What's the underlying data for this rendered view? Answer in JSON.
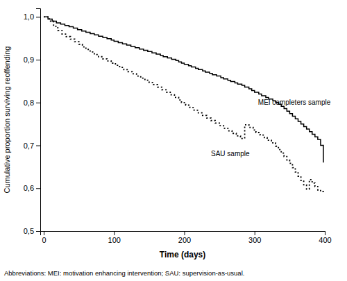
{
  "chart_data": {
    "type": "line",
    "xlabel": "Time (days)",
    "ylabel": "Cumulative proportion surviving reoffending",
    "footnote": "Abbreviations: MEI: motivation enhancing intervention; SAU: supervision-as-usual.",
    "xlim": [
      -5,
      400
    ],
    "ylim": [
      0.5,
      1.02
    ],
    "xticks": [
      0,
      100,
      200,
      300,
      400
    ],
    "yticks": [
      {
        "value": 0.5,
        "label": "0,5"
      },
      {
        "value": 0.6,
        "label": "0,6"
      },
      {
        "value": 0.7,
        "label": "0,7"
      },
      {
        "value": 0.8,
        "label": "0,8"
      },
      {
        "value": 0.9,
        "label": "0,9"
      },
      {
        "value": 1.0,
        "label": "1,0"
      }
    ],
    "series": [
      {
        "type": "step",
        "color": "#000000",
        "line_style": "solid",
        "x": [
          0,
          6,
          12,
          18,
          24,
          30,
          36,
          42,
          48,
          54,
          60,
          66,
          72,
          78,
          84,
          90,
          96,
          100,
          106,
          112,
          118,
          124,
          130,
          136,
          142,
          148,
          154,
          160,
          166,
          170,
          176,
          182,
          188,
          192,
          196,
          200,
          206,
          210,
          216,
          220,
          226,
          230,
          236,
          240,
          246,
          252,
          256,
          262,
          266,
          272,
          276,
          282,
          286,
          292,
          296,
          300,
          306,
          310,
          316,
          320,
          326,
          330,
          334,
          338,
          342,
          346,
          350,
          354,
          358,
          362,
          366,
          370,
          374,
          378,
          382,
          386,
          390,
          394,
          398
        ],
        "values": [
          1.0,
          0.995,
          0.99,
          0.986,
          0.983,
          0.98,
          0.977,
          0.974,
          0.97,
          0.967,
          0.964,
          0.961,
          0.958,
          0.955,
          0.952,
          0.949,
          0.946,
          0.943,
          0.94,
          0.937,
          0.934,
          0.931,
          0.928,
          0.925,
          0.922,
          0.919,
          0.916,
          0.913,
          0.91,
          0.907,
          0.904,
          0.901,
          0.898,
          0.895,
          0.892,
          0.889,
          0.886,
          0.883,
          0.88,
          0.877,
          0.874,
          0.871,
          0.868,
          0.865,
          0.862,
          0.858,
          0.855,
          0.852,
          0.849,
          0.846,
          0.843,
          0.84,
          0.836,
          0.832,
          0.828,
          0.824,
          0.82,
          0.816,
          0.812,
          0.808,
          0.804,
          0.8,
          0.796,
          0.791,
          0.786,
          0.78,
          0.774,
          0.768,
          0.762,
          0.756,
          0.75,
          0.744,
          0.738,
          0.732,
          0.726,
          0.72,
          0.714,
          0.7,
          0.66
        ]
      },
      {
        "type": "step",
        "color": "#000000",
        "line_style": "dotted",
        "x": [
          0,
          8,
          14,
          20,
          26,
          32,
          38,
          44,
          50,
          55,
          60,
          66,
          72,
          78,
          84,
          90,
          96,
          102,
          108,
          114,
          120,
          126,
          132,
          138,
          144,
          150,
          156,
          162,
          168,
          174,
          180,
          186,
          192,
          196,
          202,
          208,
          214,
          220,
          226,
          232,
          238,
          244,
          250,
          256,
          262,
          268,
          274,
          280,
          286,
          292,
          298,
          302,
          308,
          314,
          318,
          324,
          330,
          334,
          338,
          342,
          346,
          350,
          354,
          358,
          362,
          366,
          370,
          374,
          378,
          382,
          386,
          390,
          394,
          398
        ],
        "values": [
          1.0,
          0.99,
          0.978,
          0.968,
          0.96,
          0.954,
          0.948,
          0.942,
          0.936,
          0.93,
          0.924,
          0.918,
          0.912,
          0.907,
          0.902,
          0.897,
          0.892,
          0.887,
          0.882,
          0.877,
          0.872,
          0.867,
          0.862,
          0.857,
          0.852,
          0.847,
          0.842,
          0.836,
          0.83,
          0.824,
          0.818,
          0.812,
          0.806,
          0.8,
          0.794,
          0.788,
          0.782,
          0.776,
          0.77,
          0.764,
          0.758,
          0.752,
          0.746,
          0.74,
          0.734,
          0.728,
          0.722,
          0.716,
          0.748,
          0.742,
          0.736,
          0.73,
          0.724,
          0.718,
          0.712,
          0.706,
          0.698,
          0.69,
          0.682,
          0.674,
          0.666,
          0.658,
          0.648,
          0.638,
          0.628,
          0.618,
          0.608,
          0.598,
          0.62,
          0.612,
          0.604,
          0.596,
          0.592,
          0.59
        ]
      }
    ],
    "annotations": [
      {
        "text": "MEI completers sample",
        "x": 305,
        "y": 0.8
      },
      {
        "text": "SAU sample",
        "x": 238,
        "y": 0.68
      }
    ]
  }
}
